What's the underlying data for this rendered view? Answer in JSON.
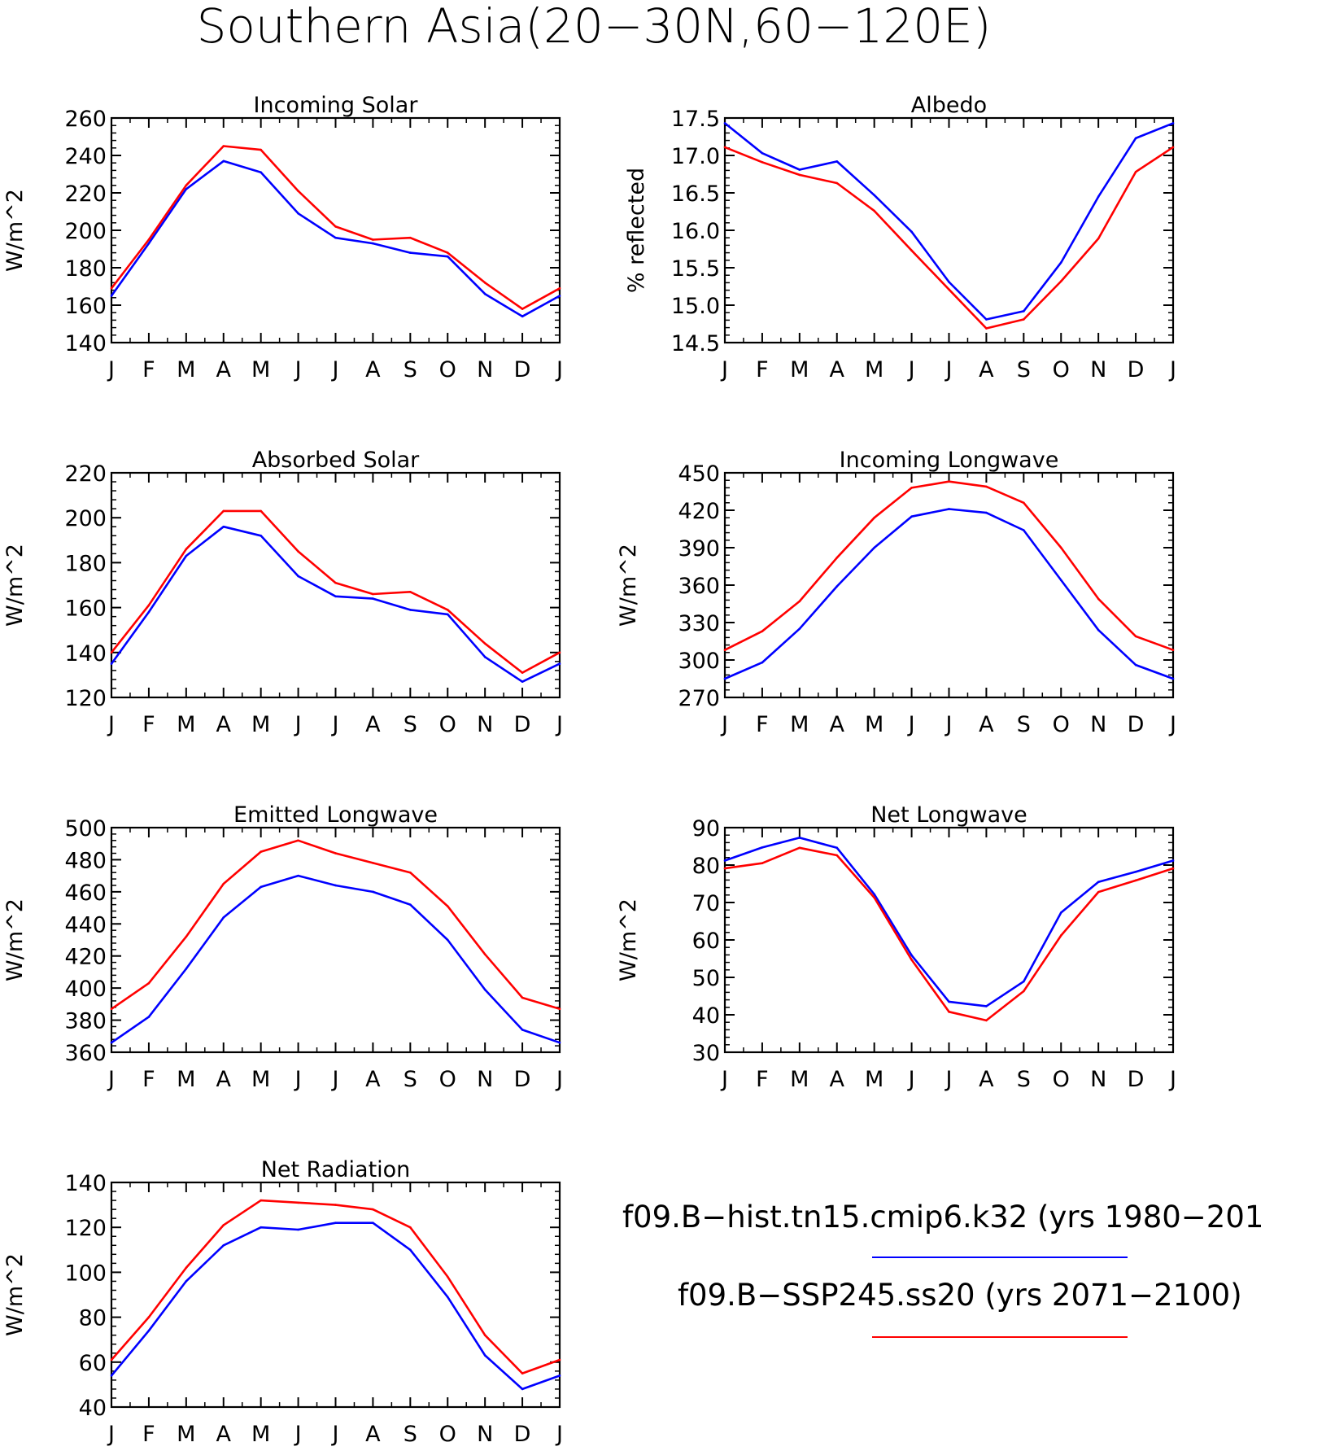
{
  "figure_title": "Southern Asia(20−30N,60−120E)",
  "legend": [
    {
      "label": "f09.B−hist.tn15.cmip6.k32 (yrs 1980−201",
      "color": "#0000ff"
    },
    {
      "label": "f09.B−SSP245.ss20 (yrs 2071−2100)",
      "color": "#ff0000"
    }
  ],
  "chart_data": [
    {
      "type": "line",
      "title": "Incoming Solar",
      "ylabel": "W/m^2",
      "categories": [
        "J",
        "F",
        "M",
        "A",
        "M",
        "J",
        "J",
        "A",
        "S",
        "O",
        "N",
        "D",
        "J"
      ],
      "ylim": [
        140,
        260
      ],
      "yticks": [
        "140",
        "160",
        "180",
        "200",
        "220",
        "240",
        "260"
      ],
      "ytick_values": [
        140,
        160,
        180,
        200,
        220,
        240,
        260
      ],
      "series": [
        {
          "color": "#0000ff",
          "values": [
            165,
            193,
            222,
            237,
            231,
            209,
            196,
            193,
            188,
            186,
            166,
            154,
            165
          ]
        },
        {
          "color": "#ff0000",
          "values": [
            169,
            195,
            224,
            245,
            243,
            221,
            202,
            195,
            196,
            188,
            172,
            158,
            169
          ]
        }
      ]
    },
    {
      "type": "line",
      "title": "Albedo",
      "ylabel": "% reflected",
      "categories": [
        "J",
        "F",
        "M",
        "A",
        "M",
        "J",
        "J",
        "A",
        "S",
        "O",
        "N",
        "D",
        "J"
      ],
      "ylim": [
        14.5,
        17.5
      ],
      "yticks": [
        "14.5",
        "15.0",
        "15.5",
        "16.0",
        "16.5",
        "17.0",
        "17.5"
      ],
      "ytick_values": [
        14.5,
        15.0,
        15.5,
        16.0,
        16.5,
        17.0,
        17.5
      ],
      "series": [
        {
          "color": "#0000ff",
          "values": [
            17.43,
            17.03,
            16.81,
            16.92,
            16.47,
            15.98,
            15.31,
            14.81,
            14.92,
            15.57,
            16.45,
            17.23,
            17.43
          ]
        },
        {
          "color": "#ff0000",
          "values": [
            17.11,
            16.91,
            16.74,
            16.63,
            16.26,
            15.73,
            15.21,
            14.69,
            14.81,
            15.32,
            15.89,
            16.78,
            17.11
          ]
        }
      ]
    },
    {
      "type": "line",
      "title": "Absorbed Solar",
      "ylabel": "W/m^2",
      "categories": [
        "J",
        "F",
        "M",
        "A",
        "M",
        "J",
        "J",
        "A",
        "S",
        "O",
        "N",
        "D",
        "J"
      ],
      "ylim": [
        120,
        220
      ],
      "yticks": [
        "120",
        "140",
        "160",
        "180",
        "200",
        "220"
      ],
      "ytick_values": [
        120,
        140,
        160,
        180,
        200,
        220
      ],
      "series": [
        {
          "color": "#0000ff",
          "values": [
            135,
            158,
            183,
            196,
            192,
            174,
            165,
            164,
            159,
            157,
            138,
            127,
            135
          ]
        },
        {
          "color": "#ff0000",
          "values": [
            140,
            161,
            186,
            203,
            203,
            185,
            171,
            166,
            167,
            159,
            144,
            131,
            140
          ]
        }
      ]
    },
    {
      "type": "line",
      "title": "Incoming Longwave",
      "ylabel": "W/m^2",
      "categories": [
        "J",
        "F",
        "M",
        "A",
        "M",
        "J",
        "J",
        "A",
        "S",
        "O",
        "N",
        "D",
        "J"
      ],
      "ylim": [
        270,
        450
      ],
      "yticks": [
        "270",
        "300",
        "330",
        "360",
        "390",
        "420",
        "450"
      ],
      "ytick_values": [
        270,
        300,
        330,
        360,
        390,
        420,
        450
      ],
      "series": [
        {
          "color": "#0000ff",
          "values": [
            285,
            298,
            325,
            359,
            390,
            415,
            421,
            418,
            404,
            364,
            324,
            296,
            285
          ]
        },
        {
          "color": "#ff0000",
          "values": [
            308,
            323,
            347,
            382,
            414,
            438,
            443,
            439,
            426,
            390,
            349,
            319,
            308
          ]
        }
      ]
    },
    {
      "type": "line",
      "title": "Emitted Longwave",
      "ylabel": "W/m^2",
      "categories": [
        "J",
        "F",
        "M",
        "A",
        "M",
        "J",
        "J",
        "A",
        "S",
        "O",
        "N",
        "D",
        "J"
      ],
      "ylim": [
        360,
        500
      ],
      "yticks": [
        "360",
        "380",
        "400",
        "420",
        "440",
        "460",
        "480",
        "500"
      ],
      "ytick_values": [
        360,
        380,
        400,
        420,
        440,
        460,
        480,
        500
      ],
      "series": [
        {
          "color": "#0000ff",
          "values": [
            366,
            382,
            412,
            444,
            463,
            470,
            464,
            460,
            452,
            430,
            399,
            374,
            366
          ]
        },
        {
          "color": "#ff0000",
          "values": [
            387,
            403,
            432,
            465,
            485,
            492,
            484,
            478,
            472,
            451,
            421,
            394,
            387
          ]
        }
      ]
    },
    {
      "type": "line",
      "title": "Net Longwave",
      "ylabel": "W/m^2",
      "categories": [
        "J",
        "F",
        "M",
        "A",
        "M",
        "J",
        "J",
        "A",
        "S",
        "O",
        "N",
        "D",
        "J"
      ],
      "ylim": [
        30,
        90
      ],
      "yticks": [
        "30",
        "40",
        "50",
        "60",
        "70",
        "80",
        "90"
      ],
      "ytick_values": [
        30,
        40,
        50,
        60,
        70,
        80,
        90
      ],
      "series": [
        {
          "color": "#0000ff",
          "values": [
            81.2,
            84.7,
            87.3,
            84.6,
            72.2,
            55.9,
            43.5,
            42.3,
            48.9,
            67.3,
            75.5,
            78.2,
            81.2
          ]
        },
        {
          "color": "#ff0000",
          "values": [
            79.1,
            80.5,
            84.6,
            82.6,
            71.3,
            54.7,
            40.8,
            38.5,
            46.3,
            61.2,
            72.8,
            75.9,
            79.1
          ]
        }
      ]
    },
    {
      "type": "line",
      "title": "Net Radiation",
      "ylabel": "W/m^2",
      "categories": [
        "J",
        "F",
        "M",
        "A",
        "M",
        "J",
        "J",
        "A",
        "S",
        "O",
        "N",
        "D",
        "J"
      ],
      "ylim": [
        40,
        140
      ],
      "yticks": [
        "40",
        "60",
        "80",
        "100",
        "120",
        "140"
      ],
      "ytick_values": [
        40,
        60,
        80,
        100,
        120,
        140
      ],
      "series": [
        {
          "color": "#0000ff",
          "values": [
            54,
            74,
            96,
            112,
            120,
            119,
            122,
            122,
            110,
            89,
            63,
            48,
            54
          ]
        },
        {
          "color": "#ff0000",
          "values": [
            61,
            80,
            102,
            121,
            132,
            131,
            130,
            128,
            120,
            98,
            72,
            55,
            61
          ]
        }
      ]
    }
  ]
}
